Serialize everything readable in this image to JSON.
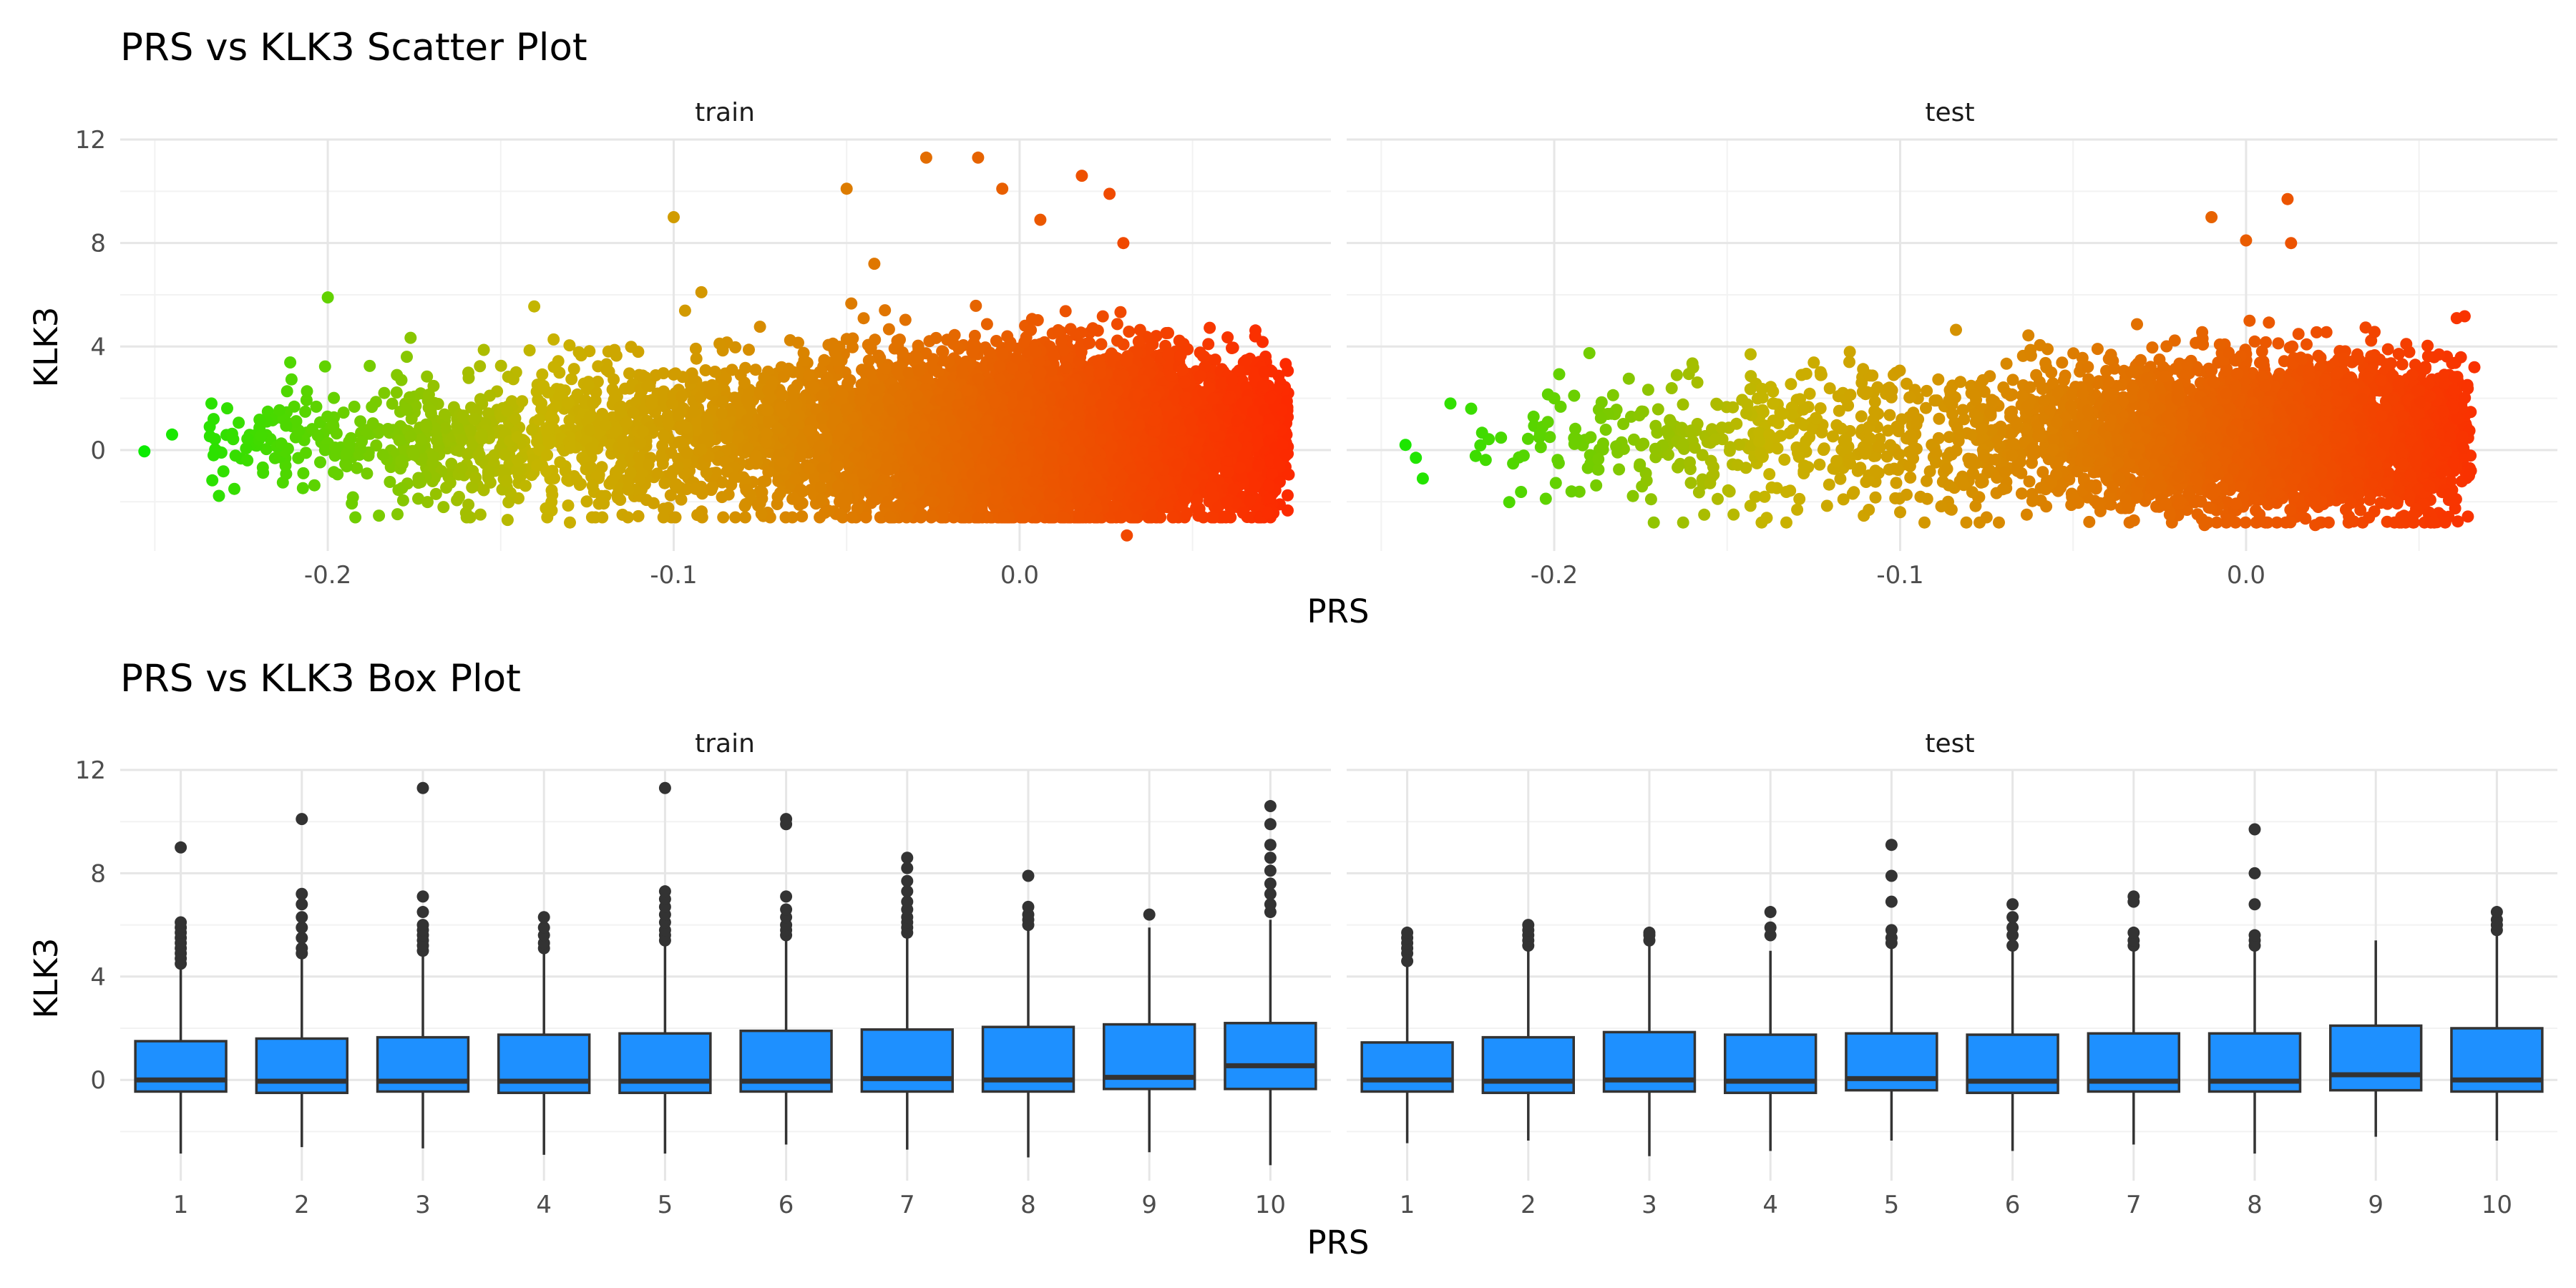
{
  "chart_data": [
    {
      "type": "scatter",
      "title": "PRS vs KLK3 Scatter Plot",
      "xlabel": "PRS",
      "ylabel": "KLK3",
      "facets": [
        "train",
        "test"
      ],
      "xlim": [
        -0.26,
        0.09
      ],
      "ylim": [
        -3.9,
        12.0
      ],
      "x_ticks": [
        -0.2,
        -0.1,
        0.0
      ],
      "x_tick_labels": [
        "-0.2",
        "-0.1",
        "0.0"
      ],
      "y_ticks": [
        0,
        4,
        8,
        12
      ],
      "y_tick_labels": [
        "0",
        "4",
        "8",
        "12"
      ],
      "grid": true,
      "color_scale": {
        "low": "#00ee00",
        "mid": "#c8b400",
        "high": "#ff2200",
        "by": "PRS"
      },
      "series": [
        {
          "facet": "train",
          "n_points_approx": 9000,
          "x_range": [
            -0.255,
            0.078
          ],
          "y_typical": [
            -2.6,
            5.0
          ],
          "points": [
            [
              -0.253,
              -0.05
            ],
            [
              -0.245,
              0.6
            ],
            [
              -0.233,
              1.2
            ],
            [
              -0.233,
              -0.2
            ],
            [
              -0.227,
              -1.5
            ],
            [
              -0.2,
              5.9
            ],
            [
              -0.18,
              2.9
            ],
            [
              -0.148,
              -2.7
            ],
            [
              -0.13,
              -2.8
            ],
            [
              -0.1,
              9.0
            ],
            [
              -0.092,
              6.1
            ],
            [
              -0.05,
              10.1
            ],
            [
              -0.042,
              7.2
            ],
            [
              -0.027,
              11.3
            ],
            [
              -0.012,
              11.3
            ],
            [
              -0.005,
              10.1
            ],
            [
              0.006,
              8.9
            ],
            [
              0.018,
              10.6
            ],
            [
              0.026,
              9.9
            ],
            [
              0.03,
              8.0
            ],
            [
              0.031,
              -3.3
            ],
            [
              0.06,
              -2.0
            ],
            [
              0.069,
              -0.6
            ],
            [
              0.072,
              0.8
            ],
            [
              0.076,
              0.2
            ],
            [
              0.077,
              -0.2
            ]
          ]
        },
        {
          "facet": "test",
          "n_points_approx": 4000,
          "x_range": [
            -0.243,
            0.065
          ],
          "y_typical": [
            -2.8,
            4.5
          ],
          "points": [
            [
              -0.243,
              0.2
            ],
            [
              -0.24,
              -0.3
            ],
            [
              -0.238,
              -1.1
            ],
            [
              -0.23,
              1.8
            ],
            [
              -0.224,
              1.6
            ],
            [
              -0.2,
              2.0
            ],
            [
              -0.195,
              -1.6
            ],
            [
              -0.172,
              -1.9
            ],
            [
              -0.1,
              -2.4
            ],
            [
              -0.075,
              -2.6
            ],
            [
              -0.012,
              -2.9
            ],
            [
              -0.01,
              9.0
            ],
            [
              0.0,
              8.1
            ],
            [
              0.012,
              9.7
            ],
            [
              0.013,
              8.0
            ],
            [
              0.02,
              -2.9
            ],
            [
              0.05,
              2.3
            ],
            [
              0.053,
              -1.4
            ],
            [
              0.057,
              1.5
            ],
            [
              0.06,
              -0.5
            ],
            [
              0.065,
              -0.8
            ],
            [
              0.066,
              3.2
            ]
          ]
        }
      ]
    },
    {
      "type": "box",
      "title": "PRS vs KLK3 Box Plot",
      "xlabel": "PRS",
      "ylabel": "KLK3",
      "facets": [
        "train",
        "test"
      ],
      "categories": [
        "1",
        "2",
        "3",
        "4",
        "5",
        "6",
        "7",
        "8",
        "9",
        "10"
      ],
      "ylim": [
        -3.9,
        12.0
      ],
      "y_ticks": [
        0,
        4,
        8,
        12
      ],
      "y_tick_labels": [
        "0",
        "4",
        "8",
        "12"
      ],
      "grid": true,
      "box_color": "#1e90ff",
      "outline_color": "#333333",
      "series": [
        {
          "facet": "train",
          "boxes": [
            {
              "q1": -0.45,
              "median": 0.0,
              "q3": 1.5,
              "lower_whisker": -2.85,
              "upper_whisker": 4.3,
              "outliers": [
                4.5,
                4.7,
                4.9,
                5.1,
                5.3,
                5.5,
                5.7,
                5.9,
                6.1,
                9.0
              ]
            },
            {
              "q1": -0.5,
              "median": -0.05,
              "q3": 1.6,
              "lower_whisker": -2.6,
              "upper_whisker": 4.7,
              "outliers": [
                4.9,
                5.1,
                5.5,
                5.9,
                6.3,
                6.8,
                7.2,
                10.1
              ]
            },
            {
              "q1": -0.45,
              "median": -0.05,
              "q3": 1.65,
              "lower_whisker": -2.65,
              "upper_whisker": 4.8,
              "outliers": [
                5.0,
                5.2,
                5.4,
                5.6,
                5.8,
                6.0,
                6.5,
                7.1,
                11.3
              ]
            },
            {
              "q1": -0.5,
              "median": -0.05,
              "q3": 1.75,
              "lower_whisker": -2.9,
              "upper_whisker": 4.9,
              "outliers": [
                5.1,
                5.3,
                5.6,
                5.9,
                6.3
              ]
            },
            {
              "q1": -0.5,
              "median": -0.05,
              "q3": 1.8,
              "lower_whisker": -2.85,
              "upper_whisker": 5.2,
              "outliers": [
                5.4,
                5.6,
                5.8,
                6.1,
                6.4,
                6.7,
                7.0,
                7.3,
                11.3
              ]
            },
            {
              "q1": -0.45,
              "median": -0.05,
              "q3": 1.9,
              "lower_whisker": -2.5,
              "upper_whisker": 5.4,
              "outliers": [
                5.6,
                5.8,
                6.0,
                6.3,
                6.6,
                7.1,
                9.9,
                10.1
              ]
            },
            {
              "q1": -0.45,
              "median": 0.05,
              "q3": 1.95,
              "lower_whisker": -2.7,
              "upper_whisker": 5.5,
              "outliers": [
                5.7,
                5.9,
                6.1,
                6.3,
                6.6,
                6.9,
                7.3,
                7.7,
                8.2,
                8.6
              ]
            },
            {
              "q1": -0.45,
              "median": 0.0,
              "q3": 2.05,
              "lower_whisker": -3.0,
              "upper_whisker": 5.8,
              "outliers": [
                6.0,
                6.2,
                6.4,
                6.7,
                7.9
              ]
            },
            {
              "q1": -0.35,
              "median": 0.1,
              "q3": 2.15,
              "lower_whisker": -2.8,
              "upper_whisker": 5.9,
              "outliers": [
                6.4
              ]
            },
            {
              "q1": -0.35,
              "median": 0.55,
              "q3": 2.2,
              "lower_whisker": -3.3,
              "upper_whisker": 6.2,
              "outliers": [
                6.5,
                6.8,
                7.2,
                7.6,
                8.1,
                8.6,
                9.1,
                9.9,
                10.6
              ]
            }
          ]
        },
        {
          "facet": "test",
          "boxes": [
            {
              "q1": -0.45,
              "median": 0.0,
              "q3": 1.45,
              "lower_whisker": -2.45,
              "upper_whisker": 4.4,
              "outliers": [
                4.6,
                4.9,
                5.1,
                5.3,
                5.5,
                5.7
              ]
            },
            {
              "q1": -0.5,
              "median": -0.05,
              "q3": 1.65,
              "lower_whisker": -2.35,
              "upper_whisker": 5.0,
              "outliers": [
                5.2,
                5.4,
                5.6,
                5.8,
                6.0
              ]
            },
            {
              "q1": -0.45,
              "median": 0.0,
              "q3": 1.85,
              "lower_whisker": -2.95,
              "upper_whisker": 5.2,
              "outliers": [
                5.4,
                5.6,
                5.7
              ]
            },
            {
              "q1": -0.5,
              "median": -0.05,
              "q3": 1.75,
              "lower_whisker": -2.75,
              "upper_whisker": 5.0,
              "outliers": [
                5.6,
                5.9,
                6.5
              ]
            },
            {
              "q1": -0.4,
              "median": 0.05,
              "q3": 1.8,
              "lower_whisker": -2.35,
              "upper_whisker": 5.1,
              "outliers": [
                5.3,
                5.5,
                5.8,
                6.9,
                7.9,
                9.1
              ]
            },
            {
              "q1": -0.5,
              "median": -0.05,
              "q3": 1.75,
              "lower_whisker": -2.75,
              "upper_whisker": 5.0,
              "outliers": [
                5.2,
                5.6,
                5.9,
                6.3,
                6.8
              ]
            },
            {
              "q1": -0.45,
              "median": -0.05,
              "q3": 1.8,
              "lower_whisker": -2.5,
              "upper_whisker": 5.0,
              "outliers": [
                5.2,
                5.4,
                5.7,
                6.9,
                7.1
              ]
            },
            {
              "q1": -0.45,
              "median": -0.05,
              "q3": 1.8,
              "lower_whisker": -2.85,
              "upper_whisker": 5.0,
              "outliers": [
                5.2,
                5.4,
                5.6,
                6.8,
                8.0,
                9.7
              ]
            },
            {
              "q1": -0.4,
              "median": 0.2,
              "q3": 2.1,
              "lower_whisker": -2.2,
              "upper_whisker": 5.4,
              "outliers": []
            },
            {
              "q1": -0.45,
              "median": 0.0,
              "q3": 2.0,
              "lower_whisker": -2.35,
              "upper_whisker": 5.6,
              "outliers": [
                5.8,
                6.0,
                6.2,
                6.5
              ]
            }
          ]
        }
      ]
    }
  ]
}
